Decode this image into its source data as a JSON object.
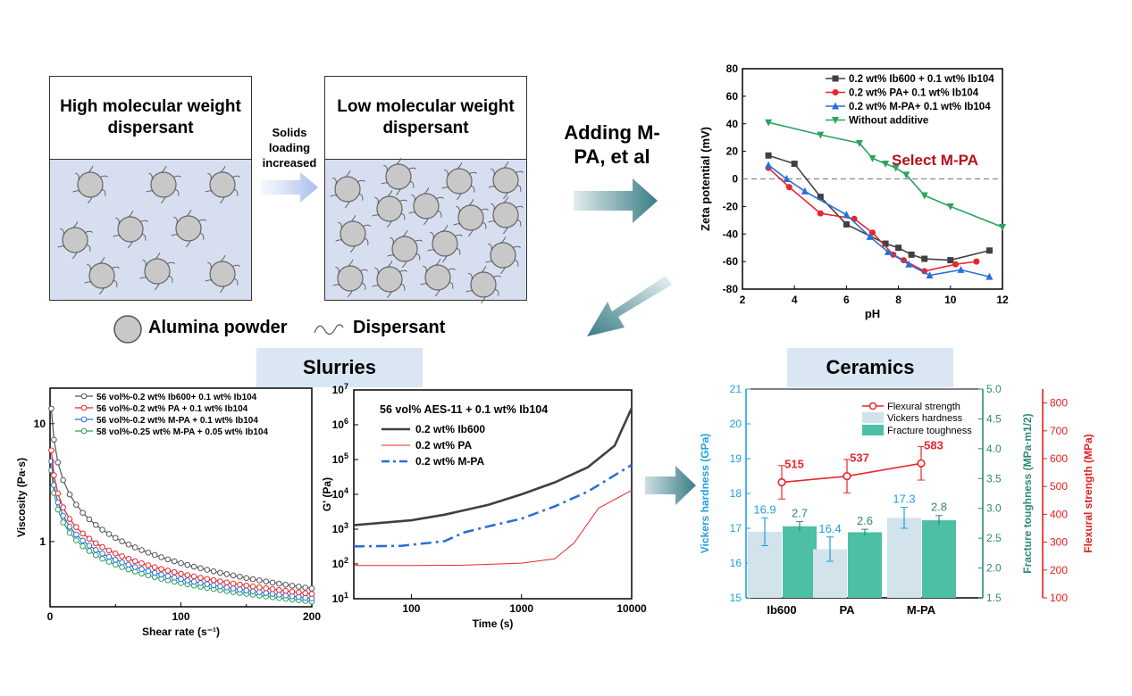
{
  "schematic": {
    "panel_high_title": "High molecular weight dispersant",
    "panel_low_title": "Low molecular weight dispersant",
    "arrow_label": "Solids loading increased",
    "legend_powder": "Alumina powder",
    "legend_dispersant": "Dispersant"
  },
  "adding_label": "Adding M-PA, et al",
  "section_slurries": "Slurries",
  "section_ceramics": "Ceramics",
  "chart_data": [
    {
      "id": "zeta",
      "type": "line",
      "xlabel": "pH",
      "ylabel": "Zeta potential (mV)",
      "xlim": [
        2,
        12
      ],
      "ylim": [
        -80,
        80
      ],
      "xticks": [
        2,
        4,
        6,
        8,
        10,
        12
      ],
      "yticks": [
        -80,
        -60,
        -40,
        -20,
        0,
        20,
        40,
        60,
        80
      ],
      "annotation": "Select M-PA",
      "series": [
        {
          "name": "0.2 wt% Ib600 + 0.1 wt% Ib104",
          "color": "#404040",
          "marker": "square",
          "x": [
            3,
            4,
            5,
            6,
            7.5,
            8,
            8.5,
            9,
            10,
            11.5
          ],
          "y": [
            17,
            11,
            -13,
            -33,
            -47,
            -50,
            -55,
            -58,
            -59,
            -52
          ]
        },
        {
          "name": "0.2 wt% PA+ 0.1 wt% Ib104",
          "color": "#e8262c",
          "marker": "circle",
          "x": [
            3,
            3.8,
            5,
            6.3,
            7,
            7.8,
            8.2,
            9,
            10.2,
            11
          ],
          "y": [
            8,
            -6,
            -25,
            -29,
            -39,
            -55,
            -59,
            -67,
            -62,
            -60
          ]
        },
        {
          "name": "0.2 wt% M-PA+ 0.1 wt% Ib104",
          "color": "#2a6fd6",
          "marker": "triangle",
          "x": [
            3,
            3.7,
            4.4,
            6,
            6.9,
            7.6,
            8.4,
            9.2,
            10.4,
            11.5
          ],
          "y": [
            10,
            0,
            -9,
            -26,
            -42,
            -53,
            -62,
            -70,
            -66,
            -71
          ]
        },
        {
          "name": "Without additive",
          "color": "#2ca25f",
          "marker": "triangle-down",
          "x": [
            3,
            5,
            6.5,
            7,
            7.5,
            7.9,
            8.3,
            9,
            10,
            12
          ],
          "y": [
            41,
            32,
            26,
            15,
            11,
            8,
            3,
            -12,
            -20,
            -35
          ]
        }
      ]
    },
    {
      "id": "viscosity",
      "type": "line",
      "xlabel": "Shear rate (s⁻¹)",
      "ylabel": "Viscosity (Pa·s)",
      "xlim": [
        0,
        200
      ],
      "ylim_log": [
        0.28,
        20
      ],
      "xticks": [
        0,
        100,
        200
      ],
      "yticks": [
        1,
        10
      ],
      "series": [
        {
          "name": "56 vol%-0.2 wt% Ib600+ 0.1 wt% Ib104",
          "color": "#555555",
          "marker": "circle",
          "y0": 18,
          "yend": 0.4
        },
        {
          "name": "56 vol%-0.2 wt% PA + 0.1 wt% Ib104",
          "color": "#e8262c",
          "marker": "circle",
          "y0": 7.5,
          "yend": 0.36
        },
        {
          "name": "56 vol%-0.2 wt% M-PA + 0.1 wt% Ib104",
          "color": "#2a6fd6",
          "marker": "circle",
          "y0": 6,
          "yend": 0.33
        },
        {
          "name": "58 vol%-0.25 wt% M-PA + 0.05 wt% Ib104",
          "color": "#2ca25f",
          "marker": "circle",
          "y0": 5,
          "yend": 0.31
        }
      ]
    },
    {
      "id": "modulus",
      "type": "line",
      "title": "56 vol% AES-11 + 0.1 wt% Ib104",
      "xlabel": "Time (s)",
      "ylabel": "G' (Pa)",
      "xlim_log": [
        30,
        10000
      ],
      "ylim_log": [
        10,
        10000000
      ],
      "xticks": [
        100,
        1000,
        10000
      ],
      "yticks": [
        10,
        100,
        1000,
        10000,
        100000,
        1000000,
        10000000
      ],
      "series": [
        {
          "name": "0.2 wt% Ib600",
          "color": "#404040",
          "style": "solid",
          "x": [
            30,
            100,
            200,
            500,
            1000,
            2000,
            4000,
            7000,
            10000
          ],
          "y": [
            1300,
            1800,
            2600,
            5000,
            10000,
            22000,
            60000,
            250000,
            3000000
          ]
        },
        {
          "name": "0.2 wt% PA",
          "color": "#e8262c",
          "style": "thin",
          "x": [
            30,
            100,
            300,
            1000,
            2000,
            3000,
            5000,
            10000
          ],
          "y": [
            90,
            90,
            92,
            105,
            140,
            400,
            4000,
            13000
          ]
        },
        {
          "name": "0.2 wt% M-PA",
          "color": "#2a6fd6",
          "style": "dashdot",
          "x": [
            30,
            80,
            200,
            300,
            500,
            1000,
            2000,
            4000,
            10000
          ],
          "y": [
            320,
            330,
            450,
            800,
            1200,
            2000,
            4500,
            12000,
            70000
          ]
        }
      ]
    },
    {
      "id": "ceramics",
      "type": "bar",
      "categories": [
        "Ib600",
        "PA",
        "M-PA"
      ],
      "series": [
        {
          "name": "Vickers hardness",
          "axis": "left",
          "color": "#d2e3ec",
          "values": [
            16.9,
            16.4,
            17.3
          ],
          "errors": [
            0.4,
            0.35,
            0.3
          ],
          "labels": [
            "16.9",
            "16.4",
            "17.3"
          ]
        },
        {
          "name": "Fracture toughness",
          "axis": "right1",
          "color": "#4cbfa5",
          "values": [
            2.7,
            2.6,
            2.8
          ],
          "errors": [
            0.08,
            0.05,
            0.08
          ],
          "labels": [
            "2.7",
            "2.6",
            "2.8"
          ]
        },
        {
          "name": "Flexural strength",
          "axis": "right2",
          "color": "#e8262c",
          "type": "line",
          "values": [
            515,
            537,
            583
          ],
          "errors": [
            60,
            60,
            60
          ],
          "labels": [
            "515",
            "537",
            "583"
          ]
        }
      ],
      "ylabel_left": "Vickers hardness (GPa)",
      "ylim_left": [
        15,
        21
      ],
      "yticks_left": [
        15,
        16,
        17,
        18,
        19,
        20,
        21
      ],
      "ylabel_right1": "Fracture toughness (MPa·m1/2)",
      "ylim_right1": [
        1.5,
        5.0
      ],
      "yticks_right1": [
        1.5,
        2.0,
        2.5,
        3.0,
        3.5,
        4.0,
        4.5,
        5.0
      ],
      "ylabel_right2": "Flexural strength (MPa)",
      "ylim_right2": [
        100,
        850
      ],
      "yticks_right2": [
        100,
        200,
        300,
        400,
        500,
        600,
        700,
        800
      ]
    }
  ],
  "colors": {
    "arrow_teal": "#3a7d86",
    "left_axis_blue": "#1fa0e0",
    "right_axis_teal": "#2e8b72",
    "right_axis_red": "#e02020",
    "annotation_red": "#b5121b"
  }
}
